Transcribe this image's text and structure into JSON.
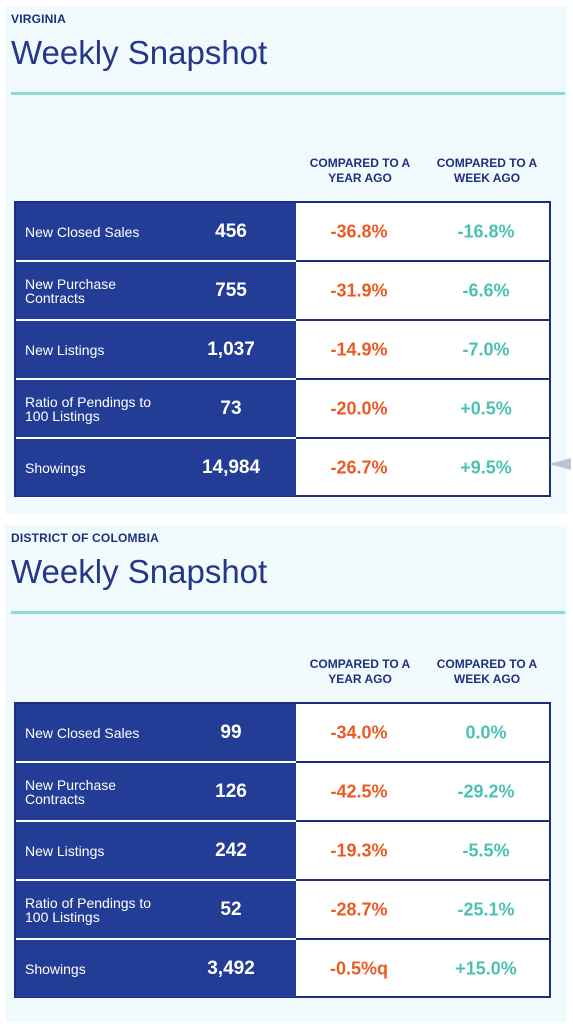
{
  "sections": [
    {
      "region": "VIRGINIA",
      "title": "Weekly Snapshot",
      "col_year": "COMPARED TO A YEAR AGO",
      "col_week": "COMPARED TO A WEEK AGO",
      "rows": [
        {
          "label": "New Closed Sales",
          "value": "456",
          "year": "-36.8%",
          "week": "-16.8%"
        },
        {
          "label": "New Purchase Contracts",
          "value": "755",
          "year": "-31.9%",
          "week": "-6.6%"
        },
        {
          "label": "New Listings",
          "value": "1,037",
          "year": "-14.9%",
          "week": "-7.0%"
        },
        {
          "label": "Ratio of Pendings to 100 Listings",
          "value": "73",
          "year": "-20.0%",
          "week": "+0.5%"
        },
        {
          "label": "Showings",
          "value": "14,984",
          "year": "-26.7%",
          "week": "+9.5%"
        }
      ]
    },
    {
      "region": "DISTRICT OF COLOMBIA",
      "title": "Weekly Snapshot",
      "col_year": "COMPARED TO A YEAR AGO",
      "col_week": "COMPARED TO A WEEK AGO",
      "rows": [
        {
          "label": "New Closed Sales",
          "value": "99",
          "year": "-34.0%",
          "week": "0.0%"
        },
        {
          "label": "New Purchase Contracts",
          "value": "126",
          "year": "-42.5%",
          "week": "-29.2%"
        },
        {
          "label": "New Listings",
          "value": "242",
          "year": "-19.3%",
          "week": "-5.5%"
        },
        {
          "label": "Ratio of Pendings to 100 Listings",
          "value": "52",
          "year": "-28.7%",
          "week": "-25.1%"
        },
        {
          "label": "Showings",
          "value": "3,492",
          "year": "-0.5%q",
          "week": "+15.0%"
        }
      ]
    }
  ],
  "colors": {
    "navy": "#233d96",
    "title": "#243788",
    "negative": "#ec5a24",
    "positive": "#4cc1b2",
    "rule": "#8ed9d0"
  }
}
